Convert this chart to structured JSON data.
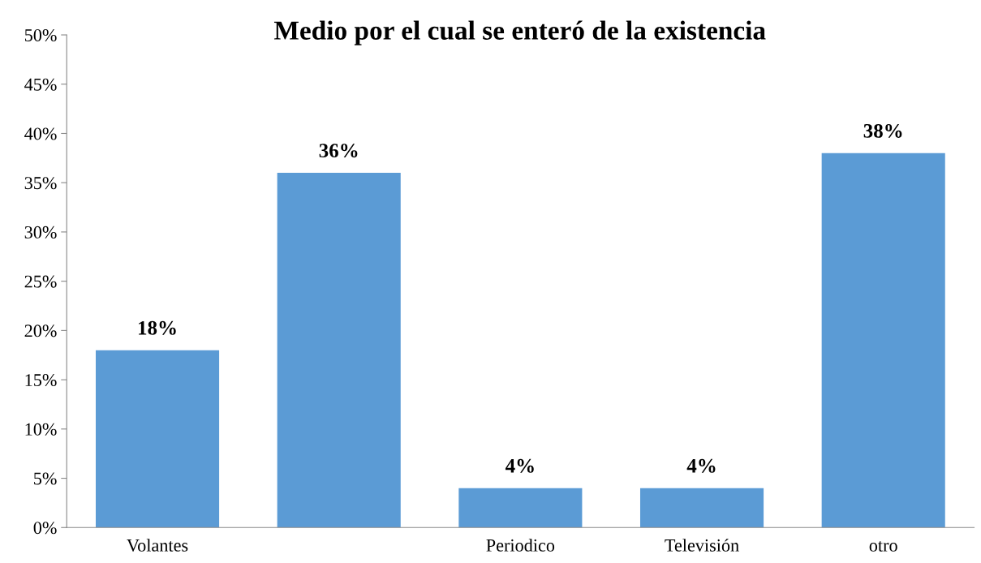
{
  "chart_data": {
    "type": "bar",
    "title": "Medio por el cual se enteró de la existencia",
    "categories": [
      "Volantes",
      null,
      "Periodico",
      "Televisión",
      "otro"
    ],
    "values": [
      18,
      36,
      4,
      4,
      38
    ],
    "color": "#5b9bd5",
    "ylim": [
      0,
      50
    ],
    "yticks": [
      {
        "value": 0,
        "label": "0%"
      },
      {
        "value": 5,
        "label": "5%"
      },
      {
        "value": 10,
        "label": "10%"
      },
      {
        "value": 15,
        "label": "15%"
      },
      {
        "value": 20,
        "label": "20%"
      },
      {
        "value": 25,
        "label": "25%"
      },
      {
        "value": 30,
        "label": "30%"
      },
      {
        "value": 35,
        "label": "35%"
      },
      {
        "value": 40,
        "label": "40%"
      },
      {
        "value": 45,
        "label": "45%"
      },
      {
        "value": 50,
        "label": "50%"
      }
    ],
    "value_labels": [
      "18%",
      "36%",
      "4%",
      "4%",
      "38%"
    ],
    "grid": false,
    "legend": false
  }
}
